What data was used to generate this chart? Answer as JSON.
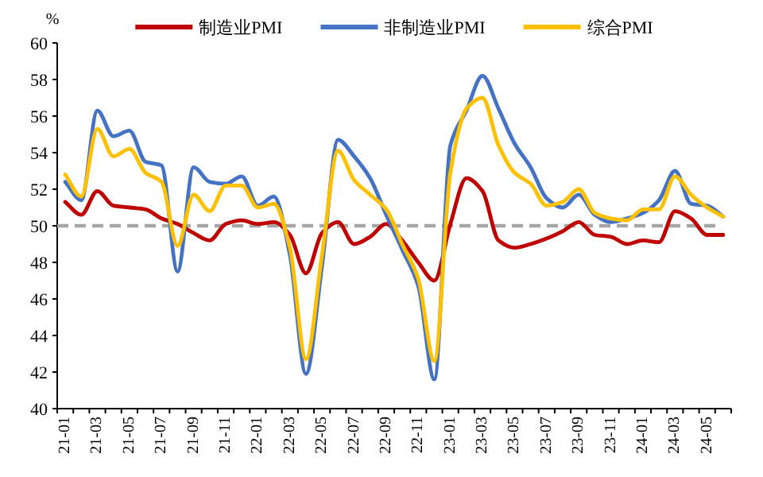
{
  "chart_data": {
    "type": "line",
    "ylabel": "%",
    "legend": "top",
    "categories": [
      "21-01",
      null,
      "21-03",
      null,
      "21-05",
      null,
      "21-07",
      null,
      "21-09",
      null,
      "21-11",
      null,
      "22-01",
      null,
      "22-03",
      null,
      "22-05",
      null,
      "22-07",
      null,
      "22-09",
      null,
      "22-11",
      null,
      "23-01",
      null,
      "23-03",
      null,
      "23-05",
      null,
      "23-07",
      null,
      "23-09",
      null,
      "23-11",
      null,
      "24-01",
      null,
      "24-03",
      null,
      "24-05",
      null
    ],
    "series": [
      {
        "name": "制造业PMI",
        "color": "#c00000",
        "values": [
          51.3,
          50.6,
          51.9,
          51.1,
          51.0,
          50.9,
          50.4,
          50.1,
          49.6,
          49.2,
          50.1,
          50.3,
          50.1,
          50.2,
          49.5,
          47.4,
          49.6,
          50.2,
          49.0,
          49.4,
          50.1,
          49.2,
          48.0,
          47.0,
          50.1,
          52.6,
          51.9,
          49.2,
          48.8,
          49.0,
          49.3,
          49.7,
          50.2,
          49.5,
          49.4,
          49.0,
          49.2,
          49.1,
          50.8,
          50.4,
          49.5,
          49.5
        ]
      },
      {
        "name": "非制造业PMI",
        "color": "#4472c4",
        "values": [
          52.4,
          51.4,
          56.3,
          54.9,
          55.2,
          53.5,
          53.3,
          47.5,
          53.2,
          52.4,
          52.3,
          52.7,
          51.1,
          51.6,
          48.4,
          41.9,
          47.8,
          54.7,
          53.8,
          52.6,
          50.6,
          48.7,
          46.7,
          41.6,
          54.4,
          56.3,
          58.2,
          56.4,
          54.5,
          53.2,
          51.5,
          51.0,
          51.7,
          50.6,
          50.2,
          50.4,
          50.7,
          51.4,
          53.0,
          51.2,
          51.1,
          50.5
        ]
      },
      {
        "name": "综合PMI",
        "color": "#ffc000",
        "values": [
          52.8,
          51.6,
          55.3,
          53.8,
          54.2,
          52.9,
          52.4,
          48.9,
          51.7,
          50.8,
          52.2,
          52.2,
          51.0,
          51.2,
          48.8,
          42.7,
          48.4,
          54.1,
          52.5,
          51.7,
          50.9,
          49.0,
          47.1,
          42.6,
          52.9,
          56.4,
          57.0,
          54.4,
          52.9,
          52.3,
          51.1,
          51.3,
          52.0,
          50.7,
          50.4,
          50.3,
          50.9,
          50.9,
          52.7,
          51.7,
          51.0,
          50.5
        ]
      }
    ],
    "ylim": [
      40,
      60
    ],
    "yticks": [
      40,
      42,
      44,
      46,
      48,
      50,
      52,
      54,
      56,
      58,
      60
    ],
    "ref_lines": [
      {
        "axis": "y",
        "value": 50,
        "color": "#a6a6a6",
        "line_style": "dashed"
      }
    ]
  }
}
